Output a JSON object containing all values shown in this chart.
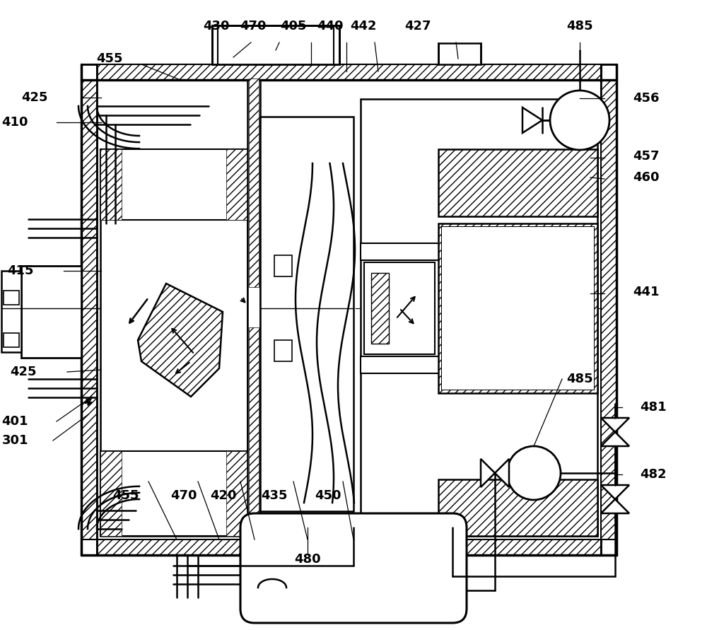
{
  "bg_color": "#ffffff",
  "fig_width": 10.0,
  "fig_height": 8.91,
  "dpi": 100
}
